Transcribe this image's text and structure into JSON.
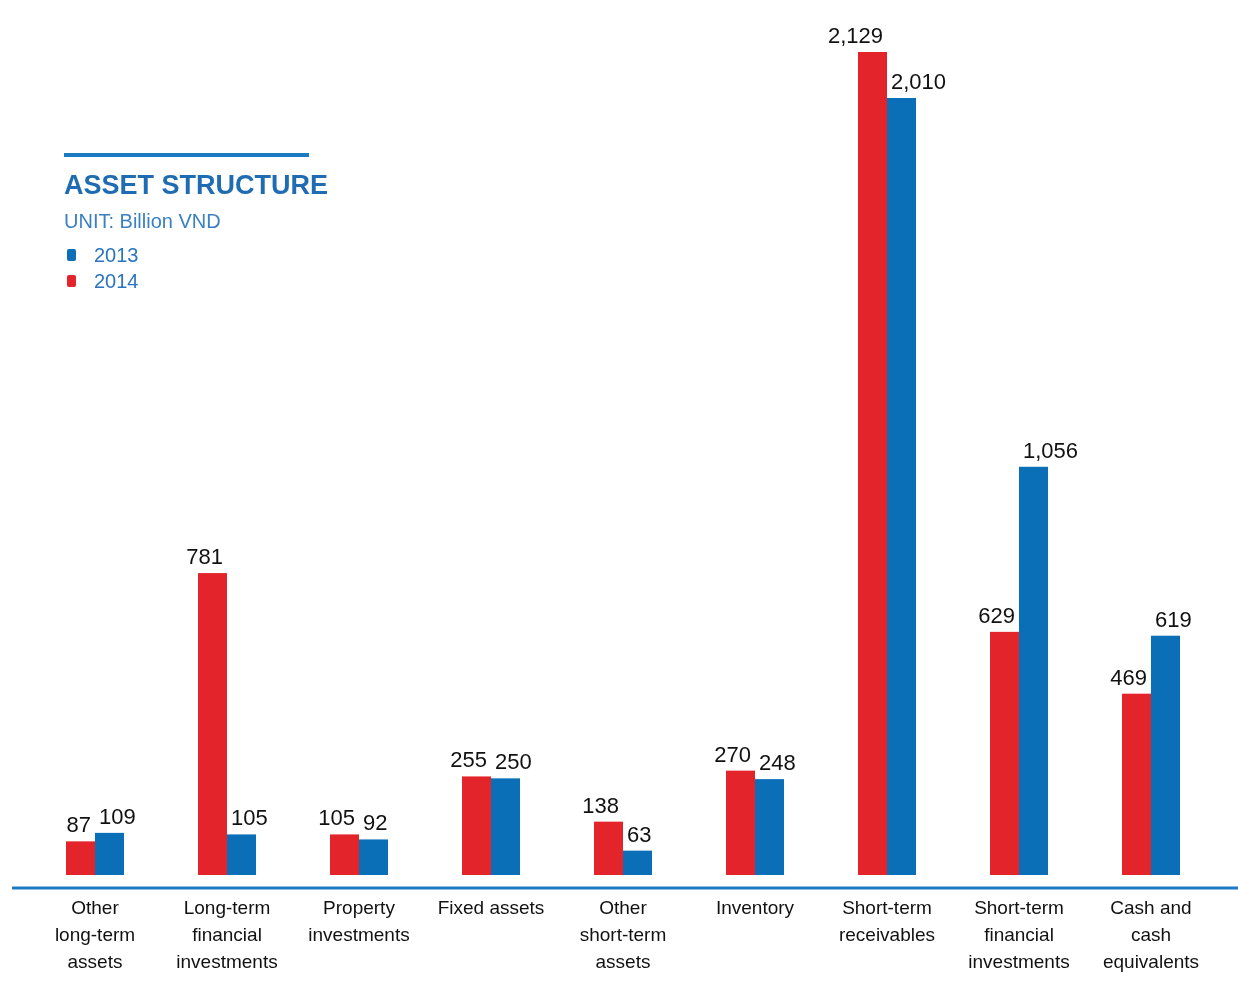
{
  "chart_data": {
    "type": "bar",
    "title": "ASSET STRUCTURE",
    "subtitle": "UNIT: Billion VND",
    "categories": [
      "Other long-term assets",
      "Long-term financial investments",
      "Property investments",
      "Fixed assets",
      "Other short-term assets",
      "Inventory",
      "Short-term receivables",
      "Short-term financial investments",
      "Cash and cash equivalents"
    ],
    "series": [
      {
        "name": "2014",
        "color": "#e3242b",
        "values": [
          87,
          781,
          105,
          255,
          138,
          270,
          2129,
          629,
          469
        ],
        "value_labels": [
          "87",
          "781",
          "105",
          "255",
          "138",
          "270",
          "2,129",
          "629",
          "469"
        ]
      },
      {
        "name": "2013",
        "color": "#0a6fb7",
        "values": [
          109,
          105,
          92,
          250,
          63,
          248,
          2010,
          1056,
          619
        ],
        "value_labels": [
          "109",
          "105",
          "92",
          "250",
          "63",
          "248",
          "2,010",
          "1,056",
          "619"
        ]
      }
    ],
    "legend": "top left"
  }
}
